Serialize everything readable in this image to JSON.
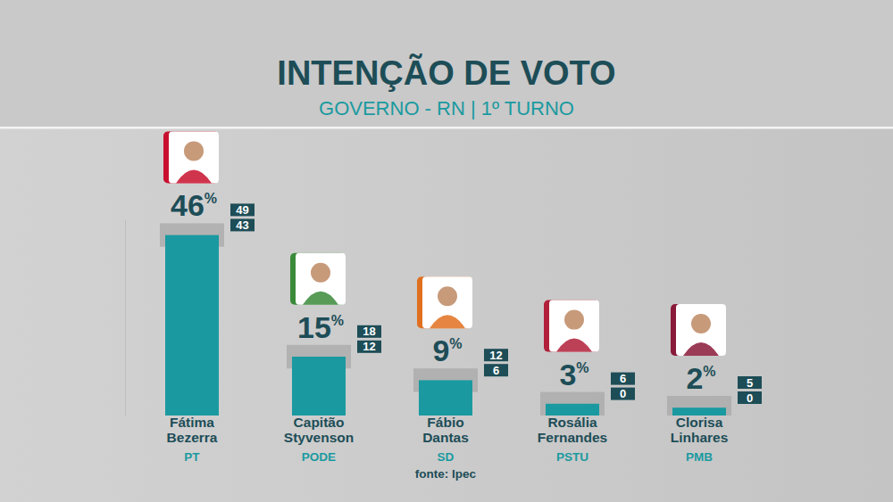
{
  "chart_data": {
    "type": "bar",
    "title": "INTENÇÃO DE VOTO",
    "subtitle": "GOVERNO - RN | 1º TURNO",
    "categories": [
      "Fátima Bezerra",
      "Capitão Styvenson",
      "Fábio Dantas",
      "Rosália Fernandes",
      "Clorisa Linhares"
    ],
    "parties": [
      "PT",
      "PODE",
      "SD",
      "PSTU",
      "PMB"
    ],
    "values": [
      46,
      15,
      9,
      3,
      2
    ],
    "value_labels": [
      "46%",
      "15%",
      "9%",
      "3%",
      "2%"
    ],
    "upper": [
      49,
      18,
      12,
      6,
      5
    ],
    "lower": [
      43,
      12,
      6,
      0,
      0
    ],
    "color": "#1a9aa0",
    "ylim": [
      0,
      50
    ],
    "tick_labels": false,
    "data_labels": true,
    "source": "fonte: Ipec"
  }
}
